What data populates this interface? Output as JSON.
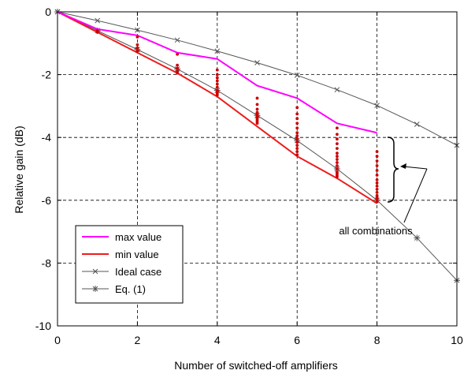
{
  "chart_data": {
    "type": "line",
    "title": "",
    "xlabel": "Number of switched-off amplifiers",
    "ylabel": "Relative gain (dB)",
    "xlim": [
      0,
      10
    ],
    "ylim": [
      -10,
      0
    ],
    "x_ticks": [
      0,
      2,
      4,
      6,
      8,
      10
    ],
    "y_ticks": [
      0,
      -2,
      -4,
      -6,
      -8,
      -10
    ],
    "grid": "dashed",
    "legend_position": "bottom-left",
    "series": [
      {
        "name": "max value",
        "color": "#ff00ff",
        "marker": "none",
        "x": [
          0,
          1,
          2,
          3,
          4,
          5,
          6,
          7,
          8
        ],
        "y": [
          0,
          -0.55,
          -0.75,
          -1.3,
          -1.5,
          -2.35,
          -2.75,
          -3.55,
          -3.85
        ]
      },
      {
        "name": "min value",
        "color": "#ee1c1c",
        "marker": "none",
        "x": [
          0,
          1,
          2,
          3,
          4,
          5,
          6,
          7,
          8
        ],
        "y": [
          0,
          -0.65,
          -1.3,
          -1.95,
          -2.7,
          -3.65,
          -4.6,
          -5.3,
          -6.1
        ]
      },
      {
        "name": "Ideal case",
        "color": "#555555",
        "marker": "x",
        "x": [
          0,
          1,
          2,
          3,
          4,
          5,
          6,
          7,
          8,
          9,
          10
        ],
        "y": [
          0,
          -0.28,
          -0.58,
          -0.9,
          -1.25,
          -1.62,
          -2.02,
          -2.48,
          -2.98,
          -3.58,
          -4.25
        ]
      },
      {
        "name": "Eq. (1)",
        "color": "#555555",
        "marker": "asterisk",
        "x": [
          0,
          1,
          2,
          3,
          4,
          5,
          6,
          7,
          8,
          9,
          10
        ],
        "y": [
          0,
          -0.6,
          -1.2,
          -1.82,
          -2.5,
          -3.3,
          -4.1,
          -5.0,
          -6.0,
          -7.2,
          -8.55
        ]
      },
      {
        "name": "all combinations",
        "color": "#cc0000",
        "marker": "dot",
        "x": [
          1,
          1,
          2,
          2,
          2,
          2,
          3,
          3,
          3,
          3,
          3,
          4,
          4,
          4,
          4,
          4,
          4,
          4,
          4,
          4,
          4,
          5,
          5,
          5,
          5,
          5,
          5,
          5,
          5,
          5,
          5,
          5,
          6,
          6,
          6,
          6,
          6,
          6,
          6,
          6,
          6,
          6,
          6,
          6,
          6,
          7,
          7,
          7,
          7,
          7,
          7,
          7,
          7,
          7,
          7,
          7,
          7,
          7,
          7,
          7,
          8,
          8,
          8,
          8,
          8,
          8,
          8,
          8,
          8,
          8,
          8,
          8,
          8,
          8,
          8,
          8
        ],
        "y": [
          -0.6,
          -0.65,
          -0.8,
          -1.05,
          -1.15,
          -1.25,
          -1.35,
          -1.7,
          -1.8,
          -1.9,
          -1.95,
          -1.85,
          -2.0,
          -2.1,
          -2.2,
          -2.3,
          -2.4,
          -2.5,
          -2.55,
          -2.6,
          -2.65,
          -2.75,
          -2.95,
          -3.1,
          -3.2,
          -3.25,
          -3.3,
          -3.35,
          -3.4,
          -3.45,
          -3.5,
          -3.55,
          -3.05,
          -3.25,
          -3.4,
          -3.55,
          -3.7,
          -3.85,
          -3.95,
          -4.05,
          -4.15,
          -4.25,
          -4.35,
          -4.45,
          -4.55,
          -3.7,
          -3.9,
          -4.05,
          -4.2,
          -4.35,
          -4.5,
          -4.6,
          -4.7,
          -4.8,
          -4.9,
          -5.0,
          -5.1,
          -5.15,
          -5.2,
          -5.25,
          -4.45,
          -4.6,
          -4.75,
          -4.9,
          -5.05,
          -5.2,
          -5.35,
          -5.45,
          -5.55,
          -5.65,
          -5.75,
          -5.85,
          -5.9,
          -5.95,
          -6.0,
          -6.05
        ]
      }
    ],
    "annotations": [
      {
        "text": "all combinations"
      }
    ]
  }
}
